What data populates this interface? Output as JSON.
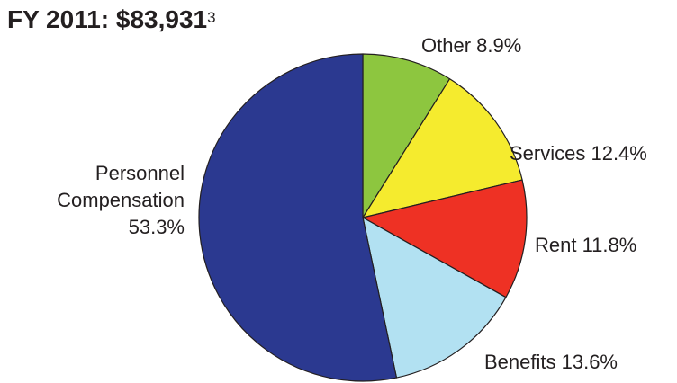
{
  "title": {
    "text": "FY 2011: $83,931",
    "footnote": "3"
  },
  "chart_data": {
    "type": "pie",
    "title": "FY 2011: $83,931",
    "start_angle_deg": 0,
    "direction": "clockwise",
    "slices": [
      {
        "label": "Other",
        "value": 8.9,
        "display": "Other 8.9%",
        "color": "#8dc63f"
      },
      {
        "label": "Services",
        "value": 12.4,
        "display": "Services 12.4%",
        "color": "#f5eb2e"
      },
      {
        "label": "Rent",
        "value": 11.8,
        "display": "Rent 11.8%",
        "color": "#ee3124"
      },
      {
        "label": "Benefits",
        "value": 13.6,
        "display": "Benefits 13.6%",
        "color": "#b2e1f2"
      },
      {
        "label": "Personnel Compensation",
        "value": 53.3,
        "display": [
          "Personnel",
          "Compensation",
          "53.3%"
        ],
        "color": "#2b3990"
      }
    ]
  }
}
